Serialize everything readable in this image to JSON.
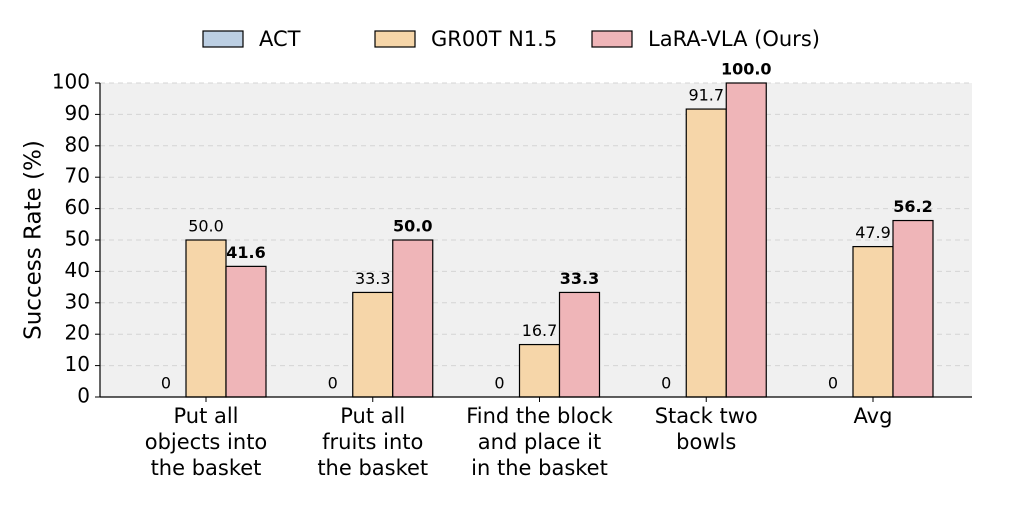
{
  "chart_data": {
    "type": "bar",
    "ylabel": "Success Rate (%)",
    "categories": [
      [
        "Put all",
        "objects into",
        "the basket"
      ],
      [
        "Put all",
        "fruits into",
        "the basket"
      ],
      [
        "Find the block",
        "and place it",
        "in the basket"
      ],
      [
        "Stack two",
        "bowls"
      ],
      [
        "Avg"
      ]
    ],
    "series": [
      {
        "name": "ACT",
        "color": "#bccfe3",
        "values": [
          0,
          0,
          0,
          0,
          0
        ],
        "value_labels": [
          "0",
          "0",
          "0",
          "0",
          "0"
        ]
      },
      {
        "name": "GR00T N1.5",
        "color": "#f6d6a9",
        "values": [
          50,
          33.3,
          16.7,
          91.7,
          47.9
        ],
        "value_labels": [
          "50.0",
          "33.3",
          "16.7",
          "91.7",
          "47.9"
        ]
      },
      {
        "name": "LaRA-VLA (Ours)",
        "color": "#efb5b8",
        "values": [
          41.6,
          50,
          33.3,
          100,
          56.2
        ],
        "value_labels": [
          "41.6",
          "50.0",
          "33.3",
          "100.0",
          "56.2"
        ],
        "bold_labels": true
      }
    ],
    "ylim": [
      0,
      100
    ],
    "yticks": [
      0,
      10,
      20,
      30,
      40,
      50,
      60,
      70,
      80,
      90,
      100
    ],
    "grid": true
  }
}
